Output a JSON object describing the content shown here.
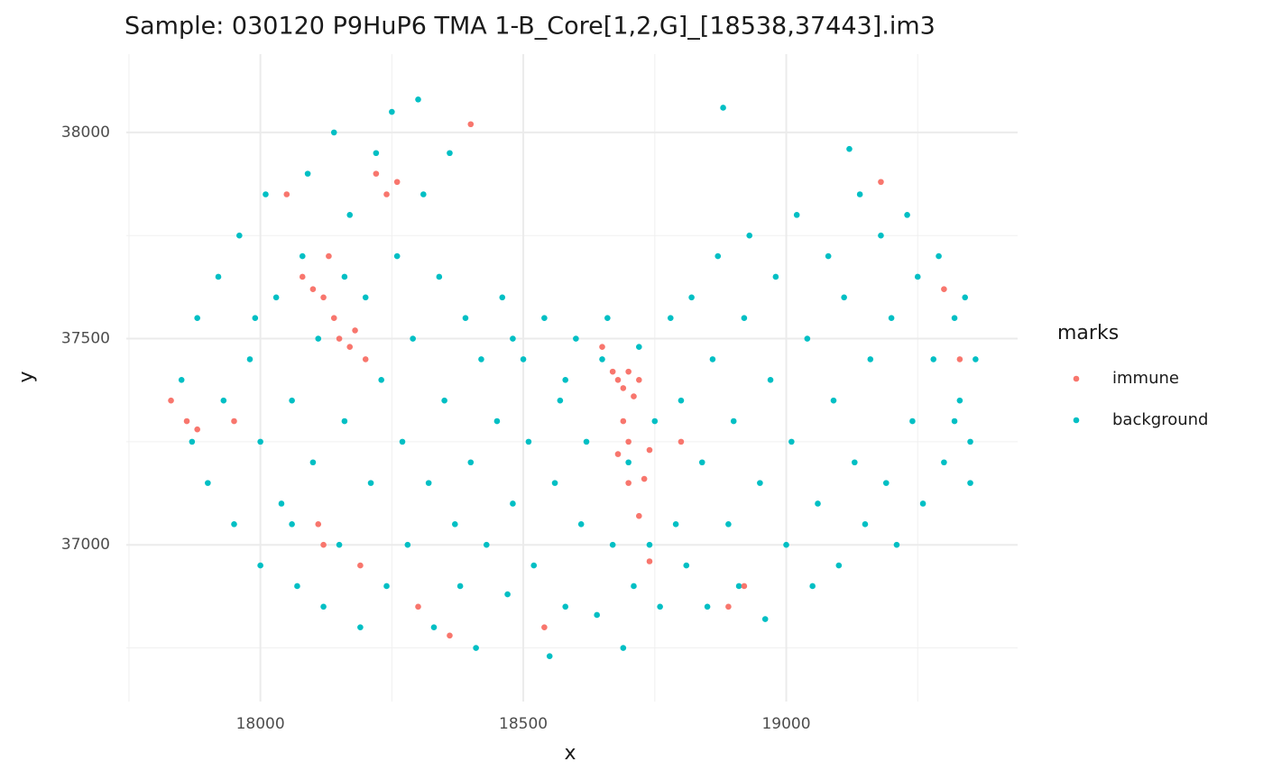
{
  "chart_data": {
    "type": "scatter",
    "title": "Sample: 030120 P9HuP6 TMA 1-B_Core[1,2,G]_[18538,37443].im3",
    "x_label": "x",
    "y_label": "y",
    "legend_title": "marks",
    "xlim": [
      17745,
      19440
    ],
    "ylim": [
      36620,
      38190
    ],
    "xticks": [
      18000,
      18500,
      19000
    ],
    "yticks": [
      37000,
      37500,
      38000
    ],
    "xminorticks": [
      17750,
      18250,
      18750,
      19250
    ],
    "yminorticks": [
      36750,
      37250,
      37750
    ],
    "grid": true,
    "series": [
      {
        "name": "immune",
        "color": "#F8766D",
        "x": [
          17830,
          17860,
          17880,
          18050,
          18080,
          18100,
          18120,
          18140,
          18150,
          18170,
          18180,
          18200,
          18220,
          18240,
          18260,
          18130,
          18110,
          18120,
          18190,
          18300,
          18360,
          18540,
          18650,
          18670,
          18680,
          18690,
          18700,
          18710,
          18720,
          18690,
          18700,
          18680,
          18740,
          18730,
          18700,
          18720,
          18740,
          18800,
          18890,
          18920,
          19180,
          19300,
          19330,
          18400,
          17950
        ],
        "y": [
          37350,
          37300,
          37280,
          37850,
          37650,
          37620,
          37600,
          37550,
          37500,
          37480,
          37520,
          37450,
          37900,
          37850,
          37880,
          37700,
          37050,
          37000,
          36950,
          36850,
          36780,
          36800,
          37480,
          37420,
          37400,
          37380,
          37420,
          37360,
          37400,
          37300,
          37250,
          37220,
          37230,
          37160,
          37150,
          37070,
          36960,
          37250,
          36850,
          36900,
          37880,
          37620,
          37450,
          38020,
          37300
        ]
      },
      {
        "name": "background",
        "color": "#00BFC4",
        "x": [
          17850,
          17870,
          17880,
          17900,
          17920,
          17930,
          17950,
          17960,
          17980,
          18000,
          18000,
          18010,
          18030,
          18040,
          18060,
          18070,
          18080,
          18090,
          18100,
          18110,
          18120,
          18140,
          18150,
          18160,
          18170,
          18190,
          18200,
          18210,
          18220,
          18230,
          18240,
          18250,
          18260,
          18270,
          18280,
          18290,
          18300,
          18310,
          18320,
          18330,
          18340,
          18350,
          18360,
          18370,
          18380,
          18390,
          18400,
          18410,
          18420,
          18430,
          18450,
          18460,
          18470,
          18480,
          18500,
          18510,
          18520,
          18540,
          18550,
          18560,
          18570,
          18580,
          18600,
          18610,
          18620,
          18640,
          18650,
          18660,
          18670,
          18690,
          18700,
          18710,
          18720,
          18740,
          18750,
          18760,
          18780,
          18790,
          18800,
          18810,
          18820,
          18840,
          18850,
          18860,
          18870,
          18880,
          18890,
          18900,
          18910,
          18920,
          18930,
          18950,
          18960,
          18970,
          18980,
          19000,
          19010,
          19020,
          19040,
          19050,
          19060,
          19080,
          19090,
          19100,
          19110,
          19120,
          19130,
          19140,
          19150,
          19160,
          19180,
          19190,
          19200,
          19210,
          19230,
          19240,
          19250,
          19260,
          19280,
          19290,
          19300,
          19320,
          19330,
          19340,
          19350,
          19360,
          19350,
          19320,
          18160,
          17990,
          18060,
          18480,
          18580
        ],
        "y": [
          37400,
          37250,
          37550,
          37150,
          37650,
          37350,
          37050,
          37750,
          37450,
          37250,
          36950,
          37850,
          37600,
          37100,
          37350,
          36900,
          37700,
          37900,
          37200,
          37500,
          36850,
          38000,
          37000,
          37300,
          37800,
          36800,
          37600,
          37150,
          37950,
          37400,
          36900,
          38050,
          37700,
          37250,
          37000,
          37500,
          38080,
          37850,
          37150,
          36800,
          37650,
          37350,
          37950,
          37050,
          36900,
          37550,
          37200,
          36750,
          37450,
          37000,
          37300,
          37600,
          36880,
          37100,
          37450,
          37250,
          36950,
          37550,
          36730,
          37150,
          37350,
          36850,
          37500,
          37050,
          37250,
          36830,
          37450,
          37550,
          37000,
          36750,
          37200,
          36900,
          37480,
          37000,
          37300,
          36850,
          37550,
          37050,
          37350,
          36950,
          37600,
          37200,
          36850,
          37450,
          37700,
          38060,
          37050,
          37300,
          36900,
          37550,
          37750,
          37150,
          36820,
          37400,
          37650,
          37000,
          37250,
          37800,
          37500,
          36900,
          37100,
          37700,
          37350,
          36950,
          37600,
          37960,
          37200,
          37850,
          37050,
          37450,
          37750,
          37150,
          37550,
          37000,
          37800,
          37300,
          37650,
          37100,
          37450,
          37700,
          37200,
          37550,
          37350,
          37600,
          37250,
          37450,
          37150,
          37300,
          37650,
          37550,
          37050,
          37500,
          37400
        ]
      }
    ]
  }
}
